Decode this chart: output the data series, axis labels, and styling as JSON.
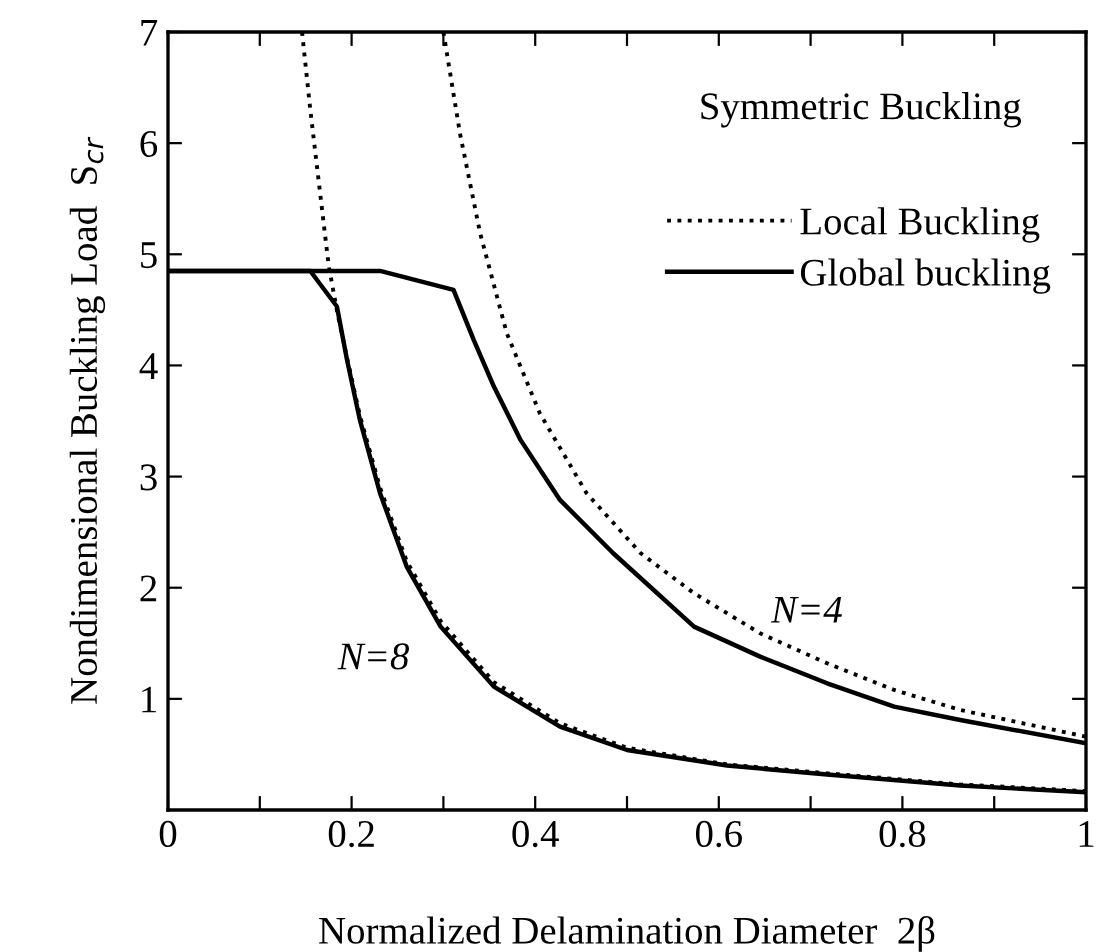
{
  "chart_data": {
    "type": "line",
    "xlabel": "Normalized Delamination Diameter  2β",
    "ylabel": "Nondimensional Buckling Load  S$_{cr}$",
    "xlim": [
      0,
      1
    ],
    "ylim": [
      0,
      7
    ],
    "xticks": [
      0,
      {
        "value": 0.1,
        "label": null
      },
      0.2,
      {
        "value": 0.3,
        "label": null
      },
      0.4,
      {
        "value": 0.5,
        "label": null
      },
      0.6,
      {
        "value": 0.7,
        "label": null
      },
      0.8,
      {
        "value": 0.9,
        "label": null
      },
      1
    ],
    "yticks": [
      1,
      2,
      3,
      4,
      5,
      6,
      7
    ],
    "grid": false,
    "legend": "top right",
    "marker": "none",
    "annotations": [
      "Symmetric Buckling",
      "N=8",
      "N=4"
    ],
    "series": [
      {
        "name": "Local Buckling",
        "color": "#000000",
        "line_style": "dotted",
        "x": [
          0.3,
          0.318,
          0.34,
          0.369,
          0.405,
          0.456,
          0.515,
          0.573,
          0.645,
          0.718,
          0.791,
          0.863,
          1.0
        ],
        "values": [
          7,
          6.09,
          5.19,
          4.29,
          3.57,
          2.85,
          2.31,
          1.95,
          1.59,
          1.32,
          1.08,
          0.9,
          0.66
        ]
      },
      {
        "name": "Global buckling",
        "color": "#000000",
        "line_style": "solid",
        "x": [
          0,
          0.155,
          0.231,
          0.311,
          0.333,
          0.355,
          0.384,
          0.427,
          0.485,
          0.573,
          0.645,
          0.718,
          0.791,
          0.863,
          1.0
        ],
        "values": [
          4.85,
          4.85,
          4.85,
          4.68,
          4.23,
          3.81,
          3.33,
          2.79,
          2.31,
          1.65,
          1.38,
          1.14,
          0.93,
          0.81,
          0.6
        ]
      },
      {
        "color": "#000000",
        "line_style": "dotted",
        "x": [
          0.146,
          0.155,
          0.165,
          0.175,
          0.185,
          0.195,
          0.209,
          0.231,
          0.26,
          0.297,
          0.355,
          0.427,
          0.5,
          0.609,
          0.718,
          0.863,
          1.0
        ],
        "values": [
          7,
          6.3,
          5.6,
          4.9,
          4.45,
          4.07,
          3.55,
          2.9,
          2.24,
          1.7,
          1.15,
          0.78,
          0.56,
          0.41,
          0.33,
          0.23,
          0.17
        ]
      },
      {
        "color": "#000000",
        "line_style": "solid",
        "x": [
          0,
          0.155,
          0.184,
          0.195,
          0.209,
          0.231,
          0.26,
          0.297,
          0.355,
          0.427,
          0.5,
          0.609,
          0.718,
          0.863,
          1.0
        ],
        "values": [
          4.85,
          4.85,
          4.53,
          4.05,
          3.51,
          2.85,
          2.19,
          1.65,
          1.11,
          0.75,
          0.54,
          0.4,
          0.32,
          0.22,
          0.16
        ]
      }
    ]
  }
}
